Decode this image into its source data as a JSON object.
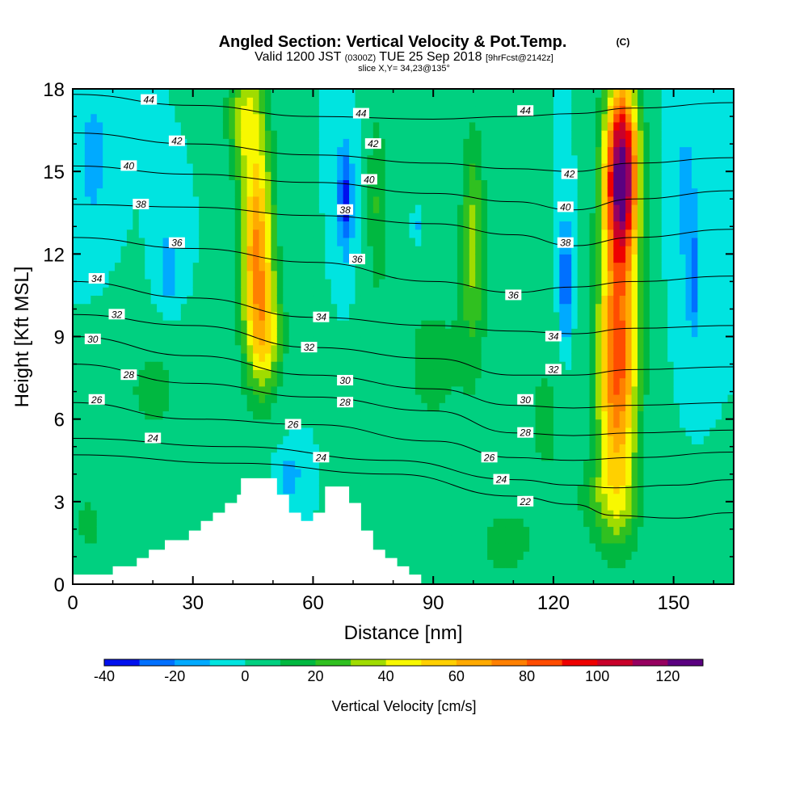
{
  "header": {
    "title": "Angled Section: Vertical Velocity & Pot.Temp.",
    "title_unit": "(C)",
    "valid_prefix": "Valid 1200 JST",
    "valid_z": "(0300Z)",
    "valid_date": "TUE 25 Sep 2018",
    "forecast": "[9hrFcst@2142z]",
    "slice": "slice X,Y= 34,23@135°"
  },
  "chart_data": {
    "type": "heatmap",
    "xlabel": "Distance [nm]",
    "ylabel": "Height [Kft MSL]",
    "xlim": [
      0,
      165
    ],
    "ylim": [
      0,
      18
    ],
    "x_ticks": [
      0,
      30,
      60,
      90,
      120,
      150
    ],
    "y_ticks": [
      0,
      3,
      6,
      9,
      12,
      15,
      18
    ],
    "colorbar": {
      "label": "Vertical Velocity [cm/s]",
      "levels": [
        -40,
        -30,
        -20,
        -10,
        0,
        10,
        20,
        30,
        40,
        50,
        60,
        70,
        80,
        90,
        100,
        110,
        120,
        130
      ],
      "tick_values": [
        -40,
        -20,
        0,
        20,
        40,
        60,
        80,
        100,
        120
      ],
      "colors": [
        "#0010ee",
        "#0070ff",
        "#00aaff",
        "#00e4e0",
        "#00d080",
        "#00b840",
        "#30c020",
        "#a0dc00",
        "#f8f800",
        "#ffd000",
        "#ffaa00",
        "#ff8000",
        "#ff4c00",
        "#ee0000",
        "#c8002a",
        "#960060",
        "#5a0080"
      ]
    },
    "background_value": 0,
    "velocity_features": [
      {
        "x": 46,
        "z": 12.0,
        "sx": 4.0,
        "sz": 4.2,
        "value": 72
      },
      {
        "x": 49,
        "z": 9.0,
        "sx": 4.0,
        "sz": 2.0,
        "value": 30
      },
      {
        "x": 43,
        "z": 17.0,
        "sx": 4.5,
        "sz": 2.0,
        "value": 35
      },
      {
        "x": 137,
        "z": 15.0,
        "sx": 4.2,
        "sz": 3.3,
        "value": 125
      },
      {
        "x": 136,
        "z": 8.0,
        "sx": 5.0,
        "sz": 4.8,
        "value": 85
      },
      {
        "x": 134,
        "z": 3.0,
        "sx": 8.0,
        "sz": 1.7,
        "value": 20
      },
      {
        "x": 100,
        "z": 12.5,
        "sx": 3.0,
        "sz": 4.0,
        "value": 32
      },
      {
        "x": 76,
        "z": 14.0,
        "sx": 2.5,
        "sz": 3.5,
        "value": 20
      },
      {
        "x": 20,
        "z": 7.0,
        "sx": 10.0,
        "sz": 2.5,
        "value": 12
      },
      {
        "x": 4,
        "z": 2.2,
        "sx": 4.0,
        "sz": 1.2,
        "value": 14
      },
      {
        "x": 90,
        "z": 8.0,
        "sx": 12.0,
        "sz": 4.0,
        "value": 12
      },
      {
        "x": 118,
        "z": 6.0,
        "sx": 6.0,
        "sz": 3.5,
        "value": 12
      },
      {
        "x": 108,
        "z": 1.5,
        "sx": 8.0,
        "sz": 1.5,
        "value": 14
      },
      {
        "x": 68,
        "z": 14.0,
        "sx": 2.0,
        "sz": 2.0,
        "value": -35
      },
      {
        "x": 123,
        "z": 11.0,
        "sx": 1.5,
        "sz": 2.5,
        "value": -30
      },
      {
        "x": 155,
        "z": 11.0,
        "sx": 1.5,
        "sz": 2.0,
        "value": -25
      },
      {
        "x": 24,
        "z": 11.5,
        "sx": 3.0,
        "sz": 1.5,
        "value": -18
      },
      {
        "x": 5,
        "z": 15.5,
        "sx": 4.0,
        "sz": 2.5,
        "value": -15
      },
      {
        "x": 153,
        "z": 14.0,
        "sx": 3.0,
        "sz": 3.0,
        "value": -15
      },
      {
        "x": 54,
        "z": 4.0,
        "sx": 3.0,
        "sz": 0.8,
        "value": -18
      },
      {
        "x": 86,
        "z": 13.0,
        "sx": 1.0,
        "sz": 0.6,
        "value": -15
      }
    ],
    "terrain_profile": [
      [
        0,
        0.35
      ],
      [
        10,
        0.35
      ],
      [
        10,
        0.65
      ],
      [
        16,
        0.65
      ],
      [
        16,
        0.95
      ],
      [
        19,
        0.95
      ],
      [
        19,
        1.25
      ],
      [
        23,
        1.25
      ],
      [
        23,
        1.6
      ],
      [
        29,
        1.6
      ],
      [
        29,
        1.95
      ],
      [
        32,
        1.95
      ],
      [
        32,
        2.3
      ],
      [
        35,
        2.3
      ],
      [
        35,
        2.6
      ],
      [
        38,
        2.6
      ],
      [
        38,
        2.95
      ],
      [
        41,
        2.95
      ],
      [
        41,
        3.25
      ],
      [
        42,
        3.25
      ],
      [
        42,
        3.85
      ],
      [
        51,
        3.85
      ],
      [
        51,
        3.25
      ],
      [
        54,
        3.25
      ],
      [
        54,
        2.6
      ],
      [
        57,
        2.6
      ],
      [
        57,
        2.3
      ],
      [
        60,
        2.3
      ],
      [
        60,
        2.6
      ],
      [
        63,
        2.6
      ],
      [
        63,
        3.55
      ],
      [
        69,
        3.55
      ],
      [
        69,
        2.95
      ],
      [
        72,
        2.95
      ],
      [
        72,
        1.95
      ],
      [
        75,
        1.95
      ],
      [
        75,
        1.25
      ],
      [
        78,
        1.25
      ],
      [
        78,
        0.95
      ],
      [
        81,
        0.95
      ],
      [
        81,
        0.65
      ],
      [
        84,
        0.65
      ],
      [
        84,
        0.35
      ],
      [
        87,
        0.35
      ],
      [
        87,
        0
      ]
    ],
    "theta_contours": [
      {
        "value": 22,
        "points": [
          [
            0,
            4.7
          ],
          [
            40,
            4.4
          ],
          [
            80,
            4.0
          ],
          [
            110,
            3.2
          ],
          [
            125,
            2.9
          ],
          [
            135,
            2.5
          ],
          [
            150,
            2.4
          ],
          [
            165,
            2.6
          ]
        ]
      },
      {
        "value": 24,
        "points": [
          [
            0,
            5.3
          ],
          [
            40,
            5.0
          ],
          [
            80,
            4.5
          ],
          [
            110,
            3.8
          ],
          [
            125,
            3.6
          ],
          [
            135,
            3.5
          ],
          [
            150,
            3.6
          ],
          [
            165,
            3.8
          ]
        ]
      },
      {
        "value": 26,
        "points": [
          [
            0,
            6.6
          ],
          [
            30,
            6.0
          ],
          [
            60,
            5.8
          ],
          [
            90,
            5.2
          ],
          [
            110,
            4.6
          ],
          [
            125,
            4.5
          ],
          [
            140,
            4.6
          ],
          [
            165,
            4.8
          ]
        ]
      },
      {
        "value": 28,
        "points": [
          [
            0,
            8.0
          ],
          [
            30,
            7.3
          ],
          [
            60,
            6.8
          ],
          [
            90,
            6.3
          ],
          [
            110,
            5.5
          ],
          [
            125,
            5.4
          ],
          [
            140,
            5.5
          ],
          [
            165,
            5.6
          ]
        ]
      },
      {
        "value": 30,
        "points": [
          [
            0,
            9.0
          ],
          [
            30,
            8.3
          ],
          [
            60,
            7.6
          ],
          [
            90,
            7.1
          ],
          [
            110,
            6.5
          ],
          [
            125,
            6.4
          ],
          [
            140,
            6.5
          ],
          [
            165,
            6.6
          ]
        ]
      },
      {
        "value": 32,
        "points": [
          [
            0,
            9.8
          ],
          [
            30,
            9.4
          ],
          [
            60,
            8.6
          ],
          [
            90,
            8.2
          ],
          [
            110,
            7.6
          ],
          [
            125,
            7.6
          ],
          [
            140,
            7.8
          ],
          [
            165,
            7.9
          ]
        ]
      },
      {
        "value": 34,
        "points": [
          [
            0,
            11.0
          ],
          [
            30,
            10.4
          ],
          [
            60,
            9.7
          ],
          [
            90,
            9.4
          ],
          [
            110,
            9.2
          ],
          [
            125,
            9.1
          ],
          [
            140,
            9.3
          ],
          [
            165,
            9.4
          ]
        ]
      },
      {
        "value": 36,
        "points": [
          [
            0,
            12.6
          ],
          [
            30,
            12.2
          ],
          [
            60,
            11.7
          ],
          [
            90,
            11.0
          ],
          [
            110,
            10.6
          ],
          [
            125,
            10.8
          ],
          [
            140,
            11.0
          ],
          [
            165,
            11.2
          ]
        ]
      },
      {
        "value": 38,
        "points": [
          [
            0,
            13.8
          ],
          [
            30,
            13.7
          ],
          [
            60,
            13.4
          ],
          [
            90,
            13.1
          ],
          [
            110,
            12.7
          ],
          [
            125,
            12.3
          ],
          [
            140,
            12.6
          ],
          [
            165,
            12.9
          ]
        ]
      },
      {
        "value": 40,
        "points": [
          [
            0,
            15.2
          ],
          [
            30,
            14.9
          ],
          [
            60,
            14.6
          ],
          [
            90,
            14.2
          ],
          [
            110,
            13.9
          ],
          [
            125,
            13.6
          ],
          [
            140,
            14.0
          ],
          [
            165,
            14.3
          ]
        ]
      },
      {
        "value": 42,
        "points": [
          [
            0,
            16.4
          ],
          [
            30,
            16.0
          ],
          [
            60,
            15.6
          ],
          [
            90,
            15.3
          ],
          [
            110,
            15.1
          ],
          [
            125,
            15.0
          ],
          [
            140,
            15.3
          ],
          [
            165,
            15.5
          ]
        ]
      },
      {
        "value": 44,
        "points": [
          [
            0,
            17.8
          ],
          [
            30,
            17.4
          ],
          [
            60,
            17.0
          ],
          [
            90,
            16.9
          ],
          [
            110,
            17.0
          ],
          [
            125,
            17.1
          ],
          [
            140,
            17.3
          ],
          [
            165,
            17.5
          ]
        ]
      }
    ],
    "contour_labels": [
      {
        "text": "44",
        "x": 19,
        "z": 17.6
      },
      {
        "text": "42",
        "x": 26,
        "z": 16.1
      },
      {
        "text": "40",
        "x": 14,
        "z": 15.2
      },
      {
        "text": "38",
        "x": 17,
        "z": 13.8
      },
      {
        "text": "36",
        "x": 26,
        "z": 12.4
      },
      {
        "text": "34",
        "x": 6,
        "z": 11.1
      },
      {
        "text": "32",
        "x": 11,
        "z": 9.8
      },
      {
        "text": "30",
        "x": 5,
        "z": 8.9
      },
      {
        "text": "28",
        "x": 14,
        "z": 7.6
      },
      {
        "text": "26",
        "x": 6,
        "z": 6.7
      },
      {
        "text": "24",
        "x": 20,
        "z": 5.3
      },
      {
        "text": "44",
        "x": 72,
        "z": 17.1
      },
      {
        "text": "42",
        "x": 75,
        "z": 16.0
      },
      {
        "text": "40",
        "x": 74,
        "z": 14.7
      },
      {
        "text": "38",
        "x": 68,
        "z": 13.6
      },
      {
        "text": "36",
        "x": 71,
        "z": 11.8
      },
      {
        "text": "34",
        "x": 62,
        "z": 9.7
      },
      {
        "text": "32",
        "x": 59,
        "z": 8.6
      },
      {
        "text": "30",
        "x": 68,
        "z": 7.4
      },
      {
        "text": "28",
        "x": 68,
        "z": 6.6
      },
      {
        "text": "26",
        "x": 55,
        "z": 5.8
      },
      {
        "text": "24",
        "x": 62,
        "z": 4.6
      },
      {
        "text": "44",
        "x": 113,
        "z": 17.2
      },
      {
        "text": "42",
        "x": 124,
        "z": 14.9
      },
      {
        "text": "40",
        "x": 123,
        "z": 13.7
      },
      {
        "text": "38",
        "x": 123,
        "z": 12.4
      },
      {
        "text": "36",
        "x": 110,
        "z": 10.5
      },
      {
        "text": "34",
        "x": 120,
        "z": 9.0
      },
      {
        "text": "32",
        "x": 120,
        "z": 7.8
      },
      {
        "text": "30",
        "x": 113,
        "z": 6.7
      },
      {
        "text": "28",
        "x": 113,
        "z": 5.5
      },
      {
        "text": "26",
        "x": 104,
        "z": 4.6
      },
      {
        "text": "24",
        "x": 107,
        "z": 3.8
      },
      {
        "text": "22",
        "x": 113,
        "z": 3.0
      }
    ]
  }
}
